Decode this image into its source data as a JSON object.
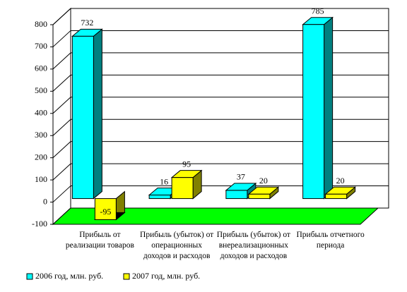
{
  "chart_data": {
    "type": "bar3d",
    "categories": [
      "Прибыль от реализации товаров",
      "Прибыль (убыток) от операционных доходов и расходов",
      "Прибыль (убыток) от внереализационных доходов и расходов",
      "Прибыль отчетного периода"
    ],
    "series": [
      {
        "name": "2006 год, млн. руб.",
        "color": "#00ffff",
        "values": [
          732,
          16,
          37,
          785
        ]
      },
      {
        "name": "2007 год, млн. руб.",
        "color": "#ffff00",
        "values": [
          -95,
          95,
          20,
          20
        ]
      }
    ],
    "ylim": [
      -100,
      800
    ],
    "yticks": [
      -100,
      0,
      100,
      200,
      300,
      400,
      500,
      600,
      700,
      800
    ],
    "grid": true,
    "floor_color": "#00ff00"
  }
}
